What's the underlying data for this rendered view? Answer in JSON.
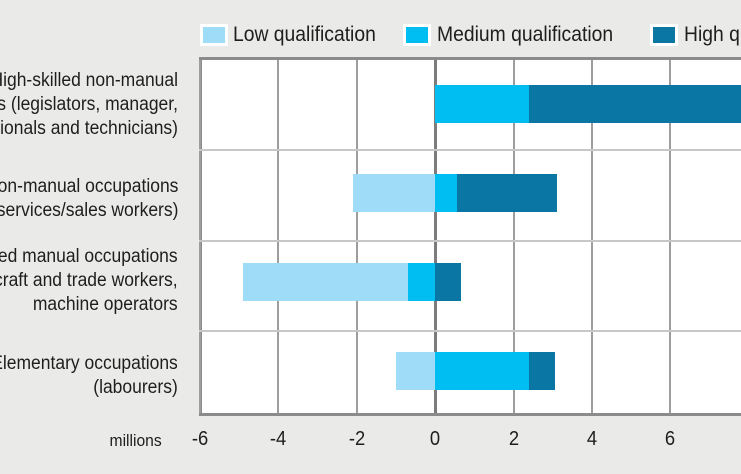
{
  "unit_label": "millions",
  "legend": {
    "items": [
      {
        "label": "Low qualification",
        "color": "#9fdcf7"
      },
      {
        "label": "Medium qualification",
        "color": "#00bdf2"
      },
      {
        "label": "High qualification",
        "color": "#0a76a4"
      }
    ]
  },
  "category_labels": [
    {
      "lines": [
        "High-skilled non-manual",
        "ns (legislators, manager,",
        "sionals and technicians)"
      ]
    },
    {
      "lines": [
        "on-manual occupations",
        "services/sales workers)"
      ]
    },
    {
      "lines": [
        "led manual occupations",
        "craft and trade workers,",
        "machine operators"
      ]
    },
    {
      "lines": [
        "Elementary occupations",
        "(labourers)"
      ]
    }
  ],
  "chart_data": {
    "type": "bar",
    "orientation": "horizontal",
    "stacked": true,
    "grid": true,
    "legend_position": "top",
    "xlabel": "millions",
    "xlim": [
      -6,
      7.8
    ],
    "ticks": [
      -6,
      -4,
      -2,
      0,
      2,
      4,
      6
    ],
    "categories": [
      "High-skilled non-manual ns (legislators, manager, sionals and technicians)",
      "on-manual occupations services/sales workers)",
      "led manual occupations craft and trade workers, machine operators",
      "Elementary occupations (labourers)"
    ],
    "series": [
      {
        "name": "Low qualification",
        "color": "#9fdcf7",
        "values": [
          0,
          -2.1,
          -4.2,
          -1.0
        ]
      },
      {
        "name": "Medium qualification",
        "color": "#00bdf2",
        "values": [
          2.4,
          0.55,
          -0.7,
          2.4
        ]
      },
      {
        "name": "High qualification",
        "color": "#0a76a4",
        "values": [
          5.6,
          2.55,
          0.65,
          0.65
        ]
      }
    ]
  }
}
